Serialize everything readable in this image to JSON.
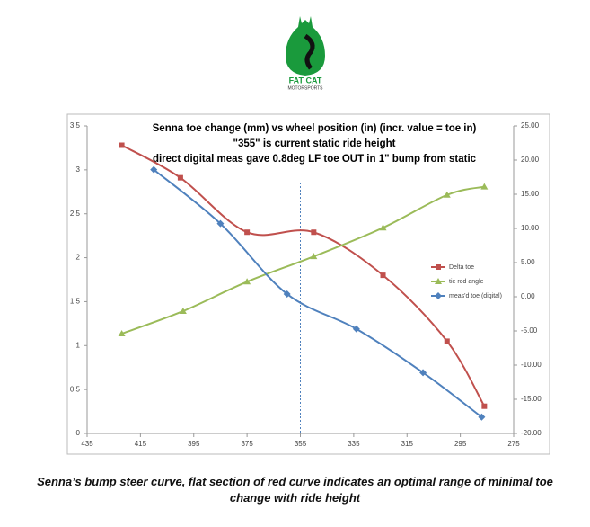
{
  "logo": {
    "name": "FAT CAT",
    "subtitle": "MOTORSPORTS"
  },
  "chart_data": {
    "type": "line",
    "title": [
      "Senna toe change (mm) vs wheel position (in) (incr. value = toe in)",
      "\"355\" is current static ride height",
      "direct digital meas gave 0.8deg LF toe OUT in 1\" bump from static"
    ],
    "xlim": [
      435,
      275
    ],
    "xticks": [
      435,
      415,
      395,
      375,
      355,
      335,
      315,
      295,
      275
    ],
    "ylim": [
      0,
      3.5
    ],
    "yticks": [
      0,
      0.5,
      1,
      1.5,
      2,
      2.5,
      3,
      3.5
    ],
    "y2lim": [
      -20,
      25
    ],
    "y2ticks": [
      {
        "value": -20,
        "label": "-20.00"
      },
      {
        "value": -15,
        "label": "-15.00"
      },
      {
        "value": -10,
        "label": "-10.00"
      },
      {
        "value": -5,
        "label": "-5.00"
      },
      {
        "value": 0,
        "label": "0.00"
      },
      {
        "value": 5,
        "label": "5.00"
      },
      {
        "value": 10,
        "label": "10.00"
      },
      {
        "value": 15,
        "label": "15.00"
      },
      {
        "value": 20,
        "label": "20.00"
      },
      {
        "value": 25,
        "label": "25.00"
      }
    ],
    "vline": 355,
    "series": [
      {
        "name": "Delta toe",
        "color": "#c0504d",
        "marker": "square",
        "x": [
          422,
          400,
          375,
          350,
          324,
          300,
          286
        ],
        "values": [
          3.28,
          2.91,
          2.29,
          2.29,
          1.8,
          1.05,
          0.31
        ]
      },
      {
        "name": "tie rod angle",
        "color": "#9bbb59",
        "marker": "triangle",
        "axis": "y2",
        "x": [
          422,
          399,
          375,
          350,
          324,
          300,
          286
        ],
        "values": [
          -5.4,
          -2.1,
          2.2,
          5.9,
          10.1,
          14.9,
          16.1
        ]
      },
      {
        "name": "meas'd toe (digital)",
        "color": "#4f81bd",
        "marker": "diamond",
        "axis": "y2",
        "x": [
          410,
          385,
          360,
          334,
          309,
          287
        ],
        "values": [
          18.6,
          10.7,
          0.4,
          -4.7,
          -11.1,
          -17.6
        ]
      }
    ]
  },
  "caption": "Senna’s bump steer curve, flat section of red curve indicates an optimal range of minimal toe change with ride height"
}
